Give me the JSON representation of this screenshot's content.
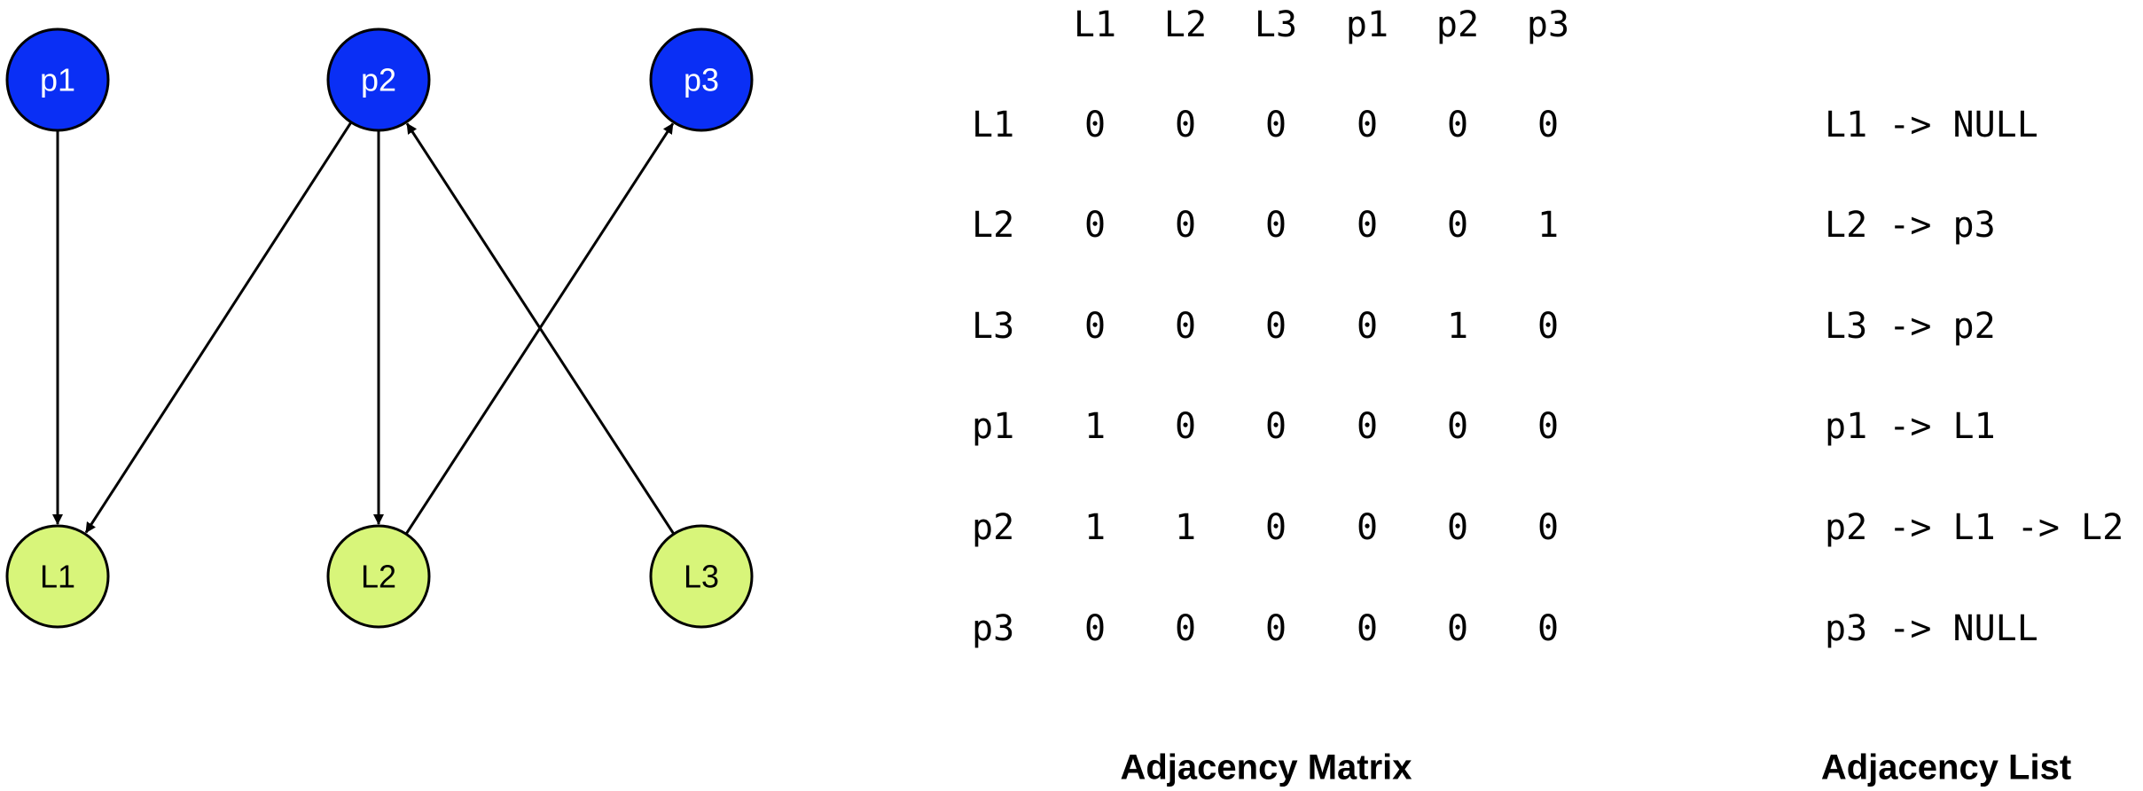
{
  "colors": {
    "p_fill": "#0a2ff5",
    "p_text": "#ffffff",
    "l_fill": "#d8f57a",
    "l_text": "#000000",
    "edge": "#000000"
  },
  "graph": {
    "nodes": [
      {
        "id": "p1",
        "label": "p1",
        "kind": "p"
      },
      {
        "id": "p2",
        "label": "p2",
        "kind": "p"
      },
      {
        "id": "p3",
        "label": "p3",
        "kind": "p"
      },
      {
        "id": "L1",
        "label": "L1",
        "kind": "L"
      },
      {
        "id": "L2",
        "label": "L2",
        "kind": "L"
      },
      {
        "id": "L3",
        "label": "L3",
        "kind": "L"
      }
    ],
    "edges": [
      {
        "from": "p1",
        "to": "L1"
      },
      {
        "from": "p2",
        "to": "L1"
      },
      {
        "from": "p2",
        "to": "L2"
      },
      {
        "from": "L2",
        "to": "p3"
      },
      {
        "from": "L3",
        "to": "p2"
      }
    ]
  },
  "matrix": {
    "col_headers": [
      "L1",
      "L2",
      "L3",
      "p1",
      "p2",
      "p3"
    ],
    "rows": [
      {
        "label": "L1",
        "values": [
          "0",
          "0",
          "0",
          "0",
          "0",
          "0"
        ]
      },
      {
        "label": "L2",
        "values": [
          "0",
          "0",
          "0",
          "0",
          "0",
          "1"
        ]
      },
      {
        "label": "L3",
        "values": [
          "0",
          "0",
          "0",
          "0",
          "1",
          "0"
        ]
      },
      {
        "label": "p1",
        "values": [
          "1",
          "0",
          "0",
          "0",
          "0",
          "0"
        ]
      },
      {
        "label": "p2",
        "values": [
          "1",
          "1",
          "0",
          "0",
          "0",
          "0"
        ]
      },
      {
        "label": "p3",
        "values": [
          "0",
          "0",
          "0",
          "0",
          "0",
          "0"
        ]
      }
    ],
    "caption": "Adjacency Matrix"
  },
  "list": {
    "entries": [
      "L1 -> NULL",
      "L2 -> p3",
      "L3 -> p2",
      "p1 -> L1",
      "p2 -> L1 -> L2",
      "p3 -> NULL"
    ],
    "caption": "Adjacency List"
  }
}
